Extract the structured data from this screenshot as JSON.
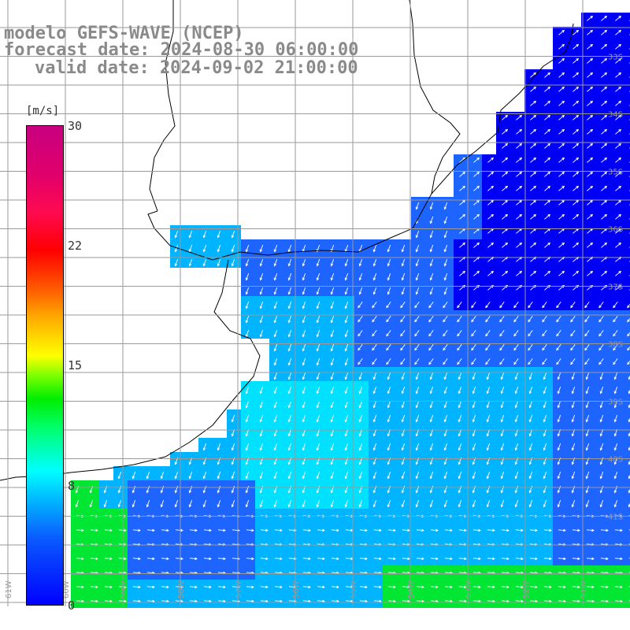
{
  "title": {
    "line1": "modelo GEFS-WAVE (NCEP)",
    "line2": "forecast date: 2024-08-30 06:00:00",
    "line3": "valid date: 2024-09-02 21:00:00"
  },
  "colorbar": {
    "unit": "[m/s]",
    "ticks": [
      "30",
      "22",
      "15",
      "8",
      "0"
    ],
    "min": 0,
    "max": 30
  },
  "map": {
    "lon_labels": [
      "61W",
      "60W",
      "59W",
      "58W",
      "57W",
      "56W",
      "55W",
      "54W",
      "53W",
      "52W",
      "51W"
    ],
    "lat_labels": [
      "33S",
      "34S",
      "35S",
      "36S",
      "37S",
      "38S",
      "39S",
      "40S",
      "41S"
    ],
    "colors": {
      "land": "#ffffff",
      "coast": "#000000",
      "grid": "#9a9a9a",
      "arrow": "#ffffff",
      "deep_blue": "#0000f5",
      "blue": "#1e64ff",
      "light_blue": "#00b4ff",
      "cyan": "#00e1ff",
      "green": "#00e632"
    }
  }
}
